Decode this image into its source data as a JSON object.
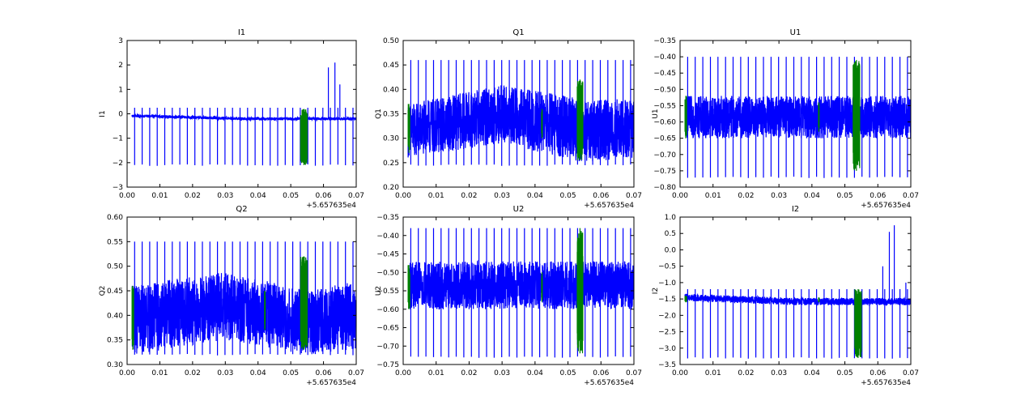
{
  "figure": {
    "background": "#ffffff",
    "colors": {
      "signal": "#0000ff",
      "flagged": "#008000",
      "axes": "#000000"
    }
  },
  "chart_data": [
    {
      "type": "line",
      "title": "I1",
      "xlabel": "",
      "ylabel": "I1",
      "xlim": [
        0.0,
        0.07
      ],
      "ylim": [
        -3,
        3
      ],
      "xticks": [
        "0.00",
        "0.01",
        "0.02",
        "0.03",
        "0.04",
        "0.05",
        "0.06",
        "0.07"
      ],
      "yticks": [
        "−3",
        "−2",
        "−1",
        "0",
        "1",
        "2",
        "3"
      ],
      "x_offset_label": "+5.657635e4",
      "grid": false,
      "legend": "none",
      "band": [
        -0.2,
        -0.08
      ],
      "baseline": -0.14,
      "trend": [
        [
          0.0015,
          -0.08
        ],
        [
          0.035,
          -0.2
        ],
        [
          0.07,
          -0.2
        ]
      ],
      "spike_interval": 0.0023,
      "spikes": {
        "downward": -2.1,
        "upward": 0.25
      },
      "tall_spikes": [
        [
          0.0615,
          1.9
        ],
        [
          0.0635,
          2.1
        ],
        [
          0.065,
          1.2
        ]
      ],
      "flagged": [
        {
          "x": [
            0.053,
            0.055
          ],
          "range": [
            -2.1,
            0.2
          ]
        }
      ]
    },
    {
      "type": "line",
      "title": "Q1",
      "xlabel": "",
      "ylabel": "Q1",
      "xlim": [
        0.0,
        0.07
      ],
      "ylim": [
        0.2,
        0.5
      ],
      "xticks": [
        "0.00",
        "0.01",
        "0.02",
        "0.03",
        "0.04",
        "0.05",
        "0.06",
        "0.07"
      ],
      "yticks": [
        "0.20",
        "0.25",
        "0.30",
        "0.35",
        "0.40",
        "0.45",
        "0.50"
      ],
      "x_offset_label": "+5.657635e4",
      "grid": false,
      "legend": "none",
      "band": [
        0.26,
        0.38
      ],
      "baseline": 0.33,
      "envelope": [
        [
          0.0015,
          0.26,
          0.37
        ],
        [
          0.03,
          0.29,
          0.41
        ],
        [
          0.055,
          0.25,
          0.38
        ],
        [
          0.07,
          0.26,
          0.38
        ]
      ],
      "spike_interval": 0.0023,
      "spikes": {
        "downward": 0.245,
        "upward": 0.46
      },
      "flagged": [
        {
          "x": [
            0.0015,
            0.002
          ],
          "range": [
            0.27,
            0.37
          ]
        },
        {
          "x": [
            0.042,
            0.0422
          ],
          "range": [
            0.3,
            0.36
          ]
        },
        {
          "x": [
            0.0528,
            0.0545
          ],
          "range": [
            0.255,
            0.42
          ]
        }
      ]
    },
    {
      "type": "line",
      "title": "U1",
      "xlabel": "",
      "ylabel": "U1",
      "xlim": [
        0.0,
        0.07
      ],
      "ylim": [
        -0.8,
        -0.35
      ],
      "xticks": [
        "0.00",
        "0.01",
        "0.02",
        "0.03",
        "0.04",
        "0.05",
        "0.06",
        "0.07"
      ],
      "yticks": [
        "−0.80",
        "−0.75",
        "−0.70",
        "−0.65",
        "−0.60",
        "−0.55",
        "−0.50",
        "−0.45",
        "−0.40",
        "−0.35"
      ],
      "x_offset_label": "+5.657635e4",
      "grid": false,
      "legend": "none",
      "band": [
        -0.65,
        -0.52
      ],
      "baseline": -0.585,
      "spike_interval": 0.0023,
      "spikes": {
        "downward": -0.77,
        "upward": -0.4
      },
      "flagged": [
        {
          "x": [
            0.0015,
            0.002
          ],
          "range": [
            -0.65,
            -0.52
          ]
        },
        {
          "x": [
            0.042,
            0.0422
          ],
          "range": [
            -0.63,
            -0.54
          ]
        },
        {
          "x": [
            0.0525,
            0.0545
          ],
          "range": [
            -0.75,
            -0.41
          ]
        }
      ]
    },
    {
      "type": "line",
      "title": "Q2",
      "xlabel": "",
      "ylabel": "Q2",
      "xlim": [
        0.0,
        0.07
      ],
      "ylim": [
        0.3,
        0.6
      ],
      "xticks": [
        "0.00",
        "0.01",
        "0.02",
        "0.03",
        "0.04",
        "0.05",
        "0.06",
        "0.07"
      ],
      "yticks": [
        "0.30",
        "0.35",
        "0.40",
        "0.45",
        "0.50",
        "0.55",
        "0.60"
      ],
      "x_offset_label": "+5.657635e4",
      "grid": false,
      "legend": "none",
      "band": [
        0.32,
        0.47
      ],
      "baseline": 0.4,
      "envelope": [
        [
          0.0015,
          0.32,
          0.46
        ],
        [
          0.03,
          0.35,
          0.49
        ],
        [
          0.055,
          0.32,
          0.45
        ],
        [
          0.07,
          0.33,
          0.47
        ]
      ],
      "spike_interval": 0.0023,
      "spikes": {
        "downward": 0.32,
        "upward": 0.55
      },
      "flagged": [
        {
          "x": [
            0.0015,
            0.002
          ],
          "range": [
            0.33,
            0.46
          ]
        },
        {
          "x": [
            0.042,
            0.0422
          ],
          "range": [
            0.37,
            0.45
          ]
        },
        {
          "x": [
            0.053,
            0.055
          ],
          "range": [
            0.33,
            0.52
          ]
        }
      ]
    },
    {
      "type": "line",
      "title": "U2",
      "xlabel": "",
      "ylabel": "U2",
      "xlim": [
        0.0,
        0.07
      ],
      "ylim": [
        -0.75,
        -0.35
      ],
      "xticks": [
        "0.00",
        "0.01",
        "0.02",
        "0.03",
        "0.04",
        "0.05",
        "0.06",
        "0.07"
      ],
      "yticks": [
        "−0.75",
        "−0.70",
        "−0.65",
        "−0.60",
        "−0.55",
        "−0.50",
        "−0.45",
        "−0.40",
        "−0.35"
      ],
      "x_offset_label": "+5.657635e4",
      "grid": false,
      "legend": "none",
      "band": [
        -0.6,
        -0.47
      ],
      "baseline": -0.535,
      "spike_interval": 0.0023,
      "spikes": {
        "downward": -0.73,
        "upward": -0.38
      },
      "flagged": [
        {
          "x": [
            0.0015,
            0.002
          ],
          "range": [
            -0.6,
            -0.48
          ]
        },
        {
          "x": [
            0.042,
            0.0422
          ],
          "range": [
            -0.58,
            -0.5
          ]
        },
        {
          "x": [
            0.0528,
            0.0545
          ],
          "range": [
            -0.72,
            -0.38
          ]
        }
      ]
    },
    {
      "type": "line",
      "title": "I2",
      "xlabel": "",
      "ylabel": "I2",
      "xlim": [
        0.0,
        0.07
      ],
      "ylim": [
        -3.5,
        1.0
      ],
      "xticks": [
        "0.00",
        "0.01",
        "0.02",
        "0.03",
        "0.04",
        "0.05",
        "0.06",
        "0.07"
      ],
      "yticks": [
        "−3.5",
        "−3.0",
        "−2.5",
        "−2.0",
        "−1.5",
        "−1.0",
        "−0.5",
        "0.0",
        "0.5",
        "1.0"
      ],
      "x_offset_label": "+5.657635e4",
      "grid": false,
      "legend": "none",
      "band": [
        -1.62,
        -1.4
      ],
      "baseline": -1.52,
      "trend": [
        [
          0.0015,
          -1.45
        ],
        [
          0.035,
          -1.58
        ],
        [
          0.07,
          -1.58
        ]
      ],
      "spike_interval": 0.0023,
      "spikes": {
        "downward": -3.3,
        "upward": -1.2
      },
      "tall_spikes": [
        [
          0.0615,
          -0.5
        ],
        [
          0.0635,
          0.55
        ],
        [
          0.065,
          0.75
        ],
        [
          0.0685,
          -1.0
        ]
      ],
      "flagged": [
        {
          "x": [
            0.0015,
            0.002
          ],
          "range": [
            -1.6,
            -1.4
          ]
        },
        {
          "x": [
            0.042,
            0.0422
          ],
          "range": [
            -1.6,
            -1.45
          ]
        },
        {
          "x": [
            0.053,
            0.055
          ],
          "range": [
            -3.3,
            -1.2
          ]
        }
      ]
    }
  ]
}
